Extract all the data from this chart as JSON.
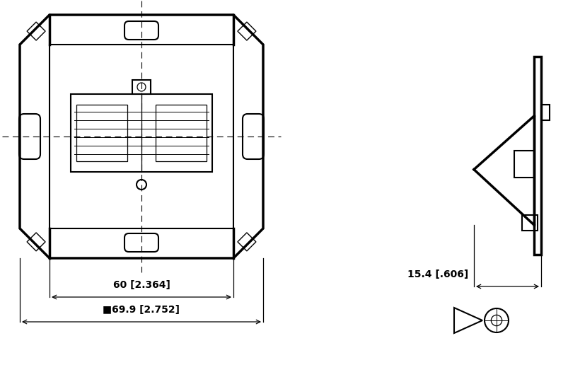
{
  "bg_color": "#ffffff",
  "line_color": "#000000",
  "lw_thick": 2.5,
  "lw_med": 1.5,
  "lw_thin": 0.9,
  "dim_label_60": "60 [2.364]",
  "dim_label_69": "■69.9 [2.752]",
  "dim_label_15": "15.4 [.606]"
}
